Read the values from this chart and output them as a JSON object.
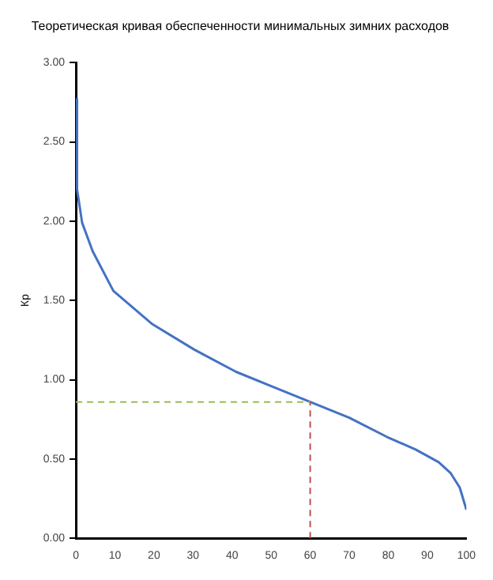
{
  "chart_data": {
    "type": "line",
    "title": "Теоретическая кривая обеспеченности минимальных зимних расходов",
    "ylabel": "Кр",
    "x": [
      0,
      0.3,
      1.6,
      4.3,
      9.6,
      19.6,
      30.3,
      41,
      50,
      60,
      70,
      79.6,
      87,
      92.9,
      96,
      98.3,
      100
    ],
    "series": [
      {
        "color": "#4472c4",
        "values": [
          2.77,
          2.2,
          1.99,
          1.81,
          1.56,
          1.35,
          1.19,
          1.05,
          0.96,
          0.86,
          0.76,
          0.64,
          0.56,
          0.48,
          0.41,
          0.32,
          0.18
        ]
      }
    ],
    "xlim": [
      0,
      100
    ],
    "xticks": [
      0,
      10,
      20,
      30,
      40,
      50,
      60,
      70,
      80,
      90,
      100
    ],
    "ylim": [
      0,
      3
    ],
    "yticks": [
      {
        "value": 0,
        "label": "0.00"
      },
      {
        "value": 0.5,
        "label": "0.50"
      },
      {
        "value": 1,
        "label": "1.00"
      },
      {
        "value": 1.5,
        "label": "1.50"
      },
      {
        "value": 2,
        "label": "2.00"
      },
      {
        "value": 2.5,
        "label": "2.50"
      },
      {
        "value": 3,
        "label": "3.00"
      }
    ],
    "ref_lines": [
      {
        "axis": "y",
        "value": 0.86,
        "color": "#9bbb59",
        "line_style": "dashed"
      },
      {
        "axis": "x",
        "value": 60,
        "color": "#c0504d",
        "line_style": "dashed"
      }
    ],
    "grid": false,
    "legend": false,
    "marker": "none",
    "line_style": "solid"
  }
}
